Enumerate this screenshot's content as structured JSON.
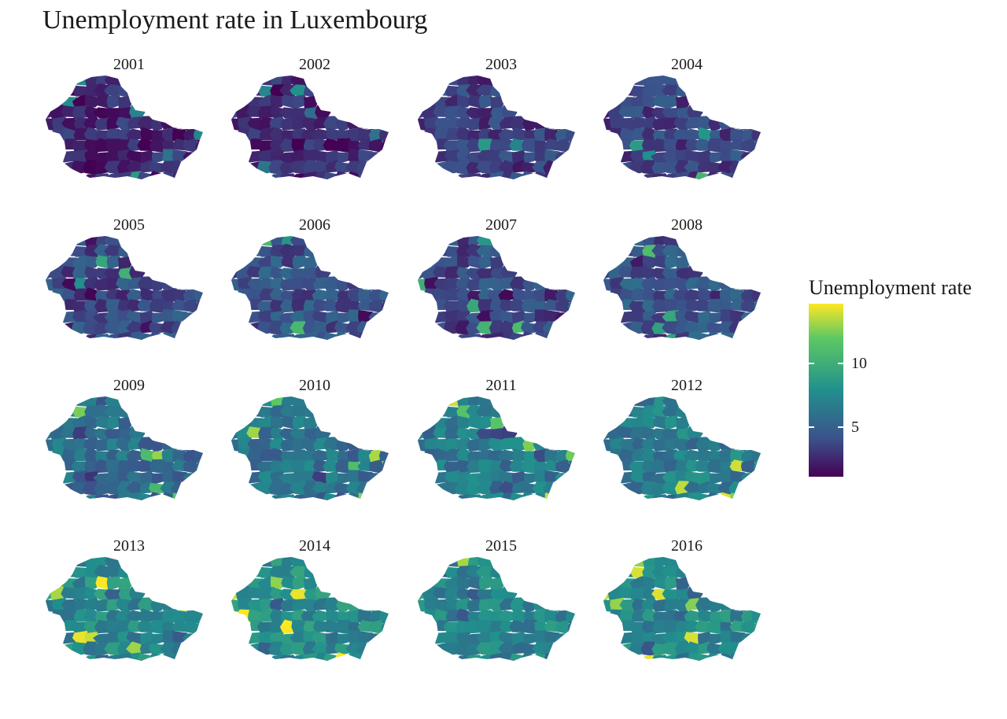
{
  "title": "Unemployment rate in Luxembourg",
  "facets": [
    {
      "year": "2001",
      "level": 0.12
    },
    {
      "year": "2002",
      "level": 0.12
    },
    {
      "year": "2003",
      "level": 0.18
    },
    {
      "year": "2004",
      "level": 0.2
    },
    {
      "year": "2005",
      "level": 0.22
    },
    {
      "year": "2006",
      "level": 0.24
    },
    {
      "year": "2007",
      "level": 0.22
    },
    {
      "year": "2008",
      "level": 0.26
    },
    {
      "year": "2009",
      "level": 0.36
    },
    {
      "year": "2010",
      "level": 0.38
    },
    {
      "year": "2011",
      "level": 0.4
    },
    {
      "year": "2012",
      "level": 0.42
    },
    {
      "year": "2013",
      "level": 0.48
    },
    {
      "year": "2014",
      "level": 0.48
    },
    {
      "year": "2015",
      "level": 0.46
    },
    {
      "year": "2016",
      "level": 0.46
    }
  ],
  "legend": {
    "title": "Unemployment rate",
    "ticks": [
      "5",
      "10"
    ],
    "tick_values": [
      5,
      10
    ],
    "scale_min": 1,
    "scale_max": 14.7,
    "palette": [
      "#440154",
      "#3b528b",
      "#21908d",
      "#5dc863",
      "#fde725"
    ]
  }
}
